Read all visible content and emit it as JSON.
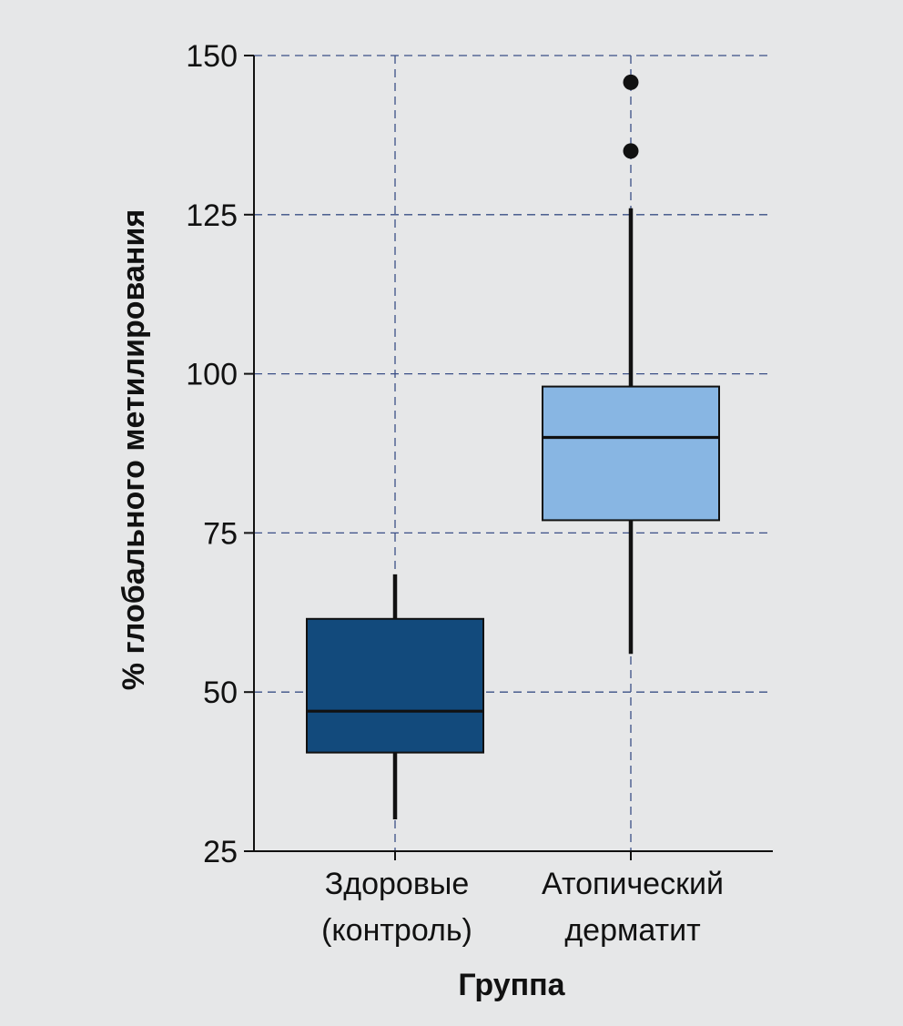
{
  "chart_data": {
    "type": "box",
    "xlabel": "Группа",
    "ylabel": "% глобального метилирования",
    "ylim": [
      25,
      150
    ],
    "yticks": [
      25,
      50,
      75,
      100,
      125,
      150
    ],
    "grid": true,
    "categories": [
      {
        "lines": [
          "Здоровые",
          "(контроль)"
        ]
      },
      {
        "lines": [
          "Атопический",
          "дерматит"
        ]
      }
    ],
    "boxes": [
      {
        "whisker_low": 30,
        "q1": 40.5,
        "median": 47,
        "q3": 61.5,
        "whisker_high": 68.5,
        "outliers": [],
        "fill": "#124a7c"
      },
      {
        "whisker_low": 56,
        "q1": 77,
        "median": 90,
        "q3": 98,
        "whisker_high": 126,
        "outliers": [
          135,
          145.8
        ],
        "fill": "#88b6e3"
      }
    ],
    "colors": {
      "background": "#e6e7e8",
      "grid": "#3a4f86",
      "axis": "#111111"
    }
  }
}
